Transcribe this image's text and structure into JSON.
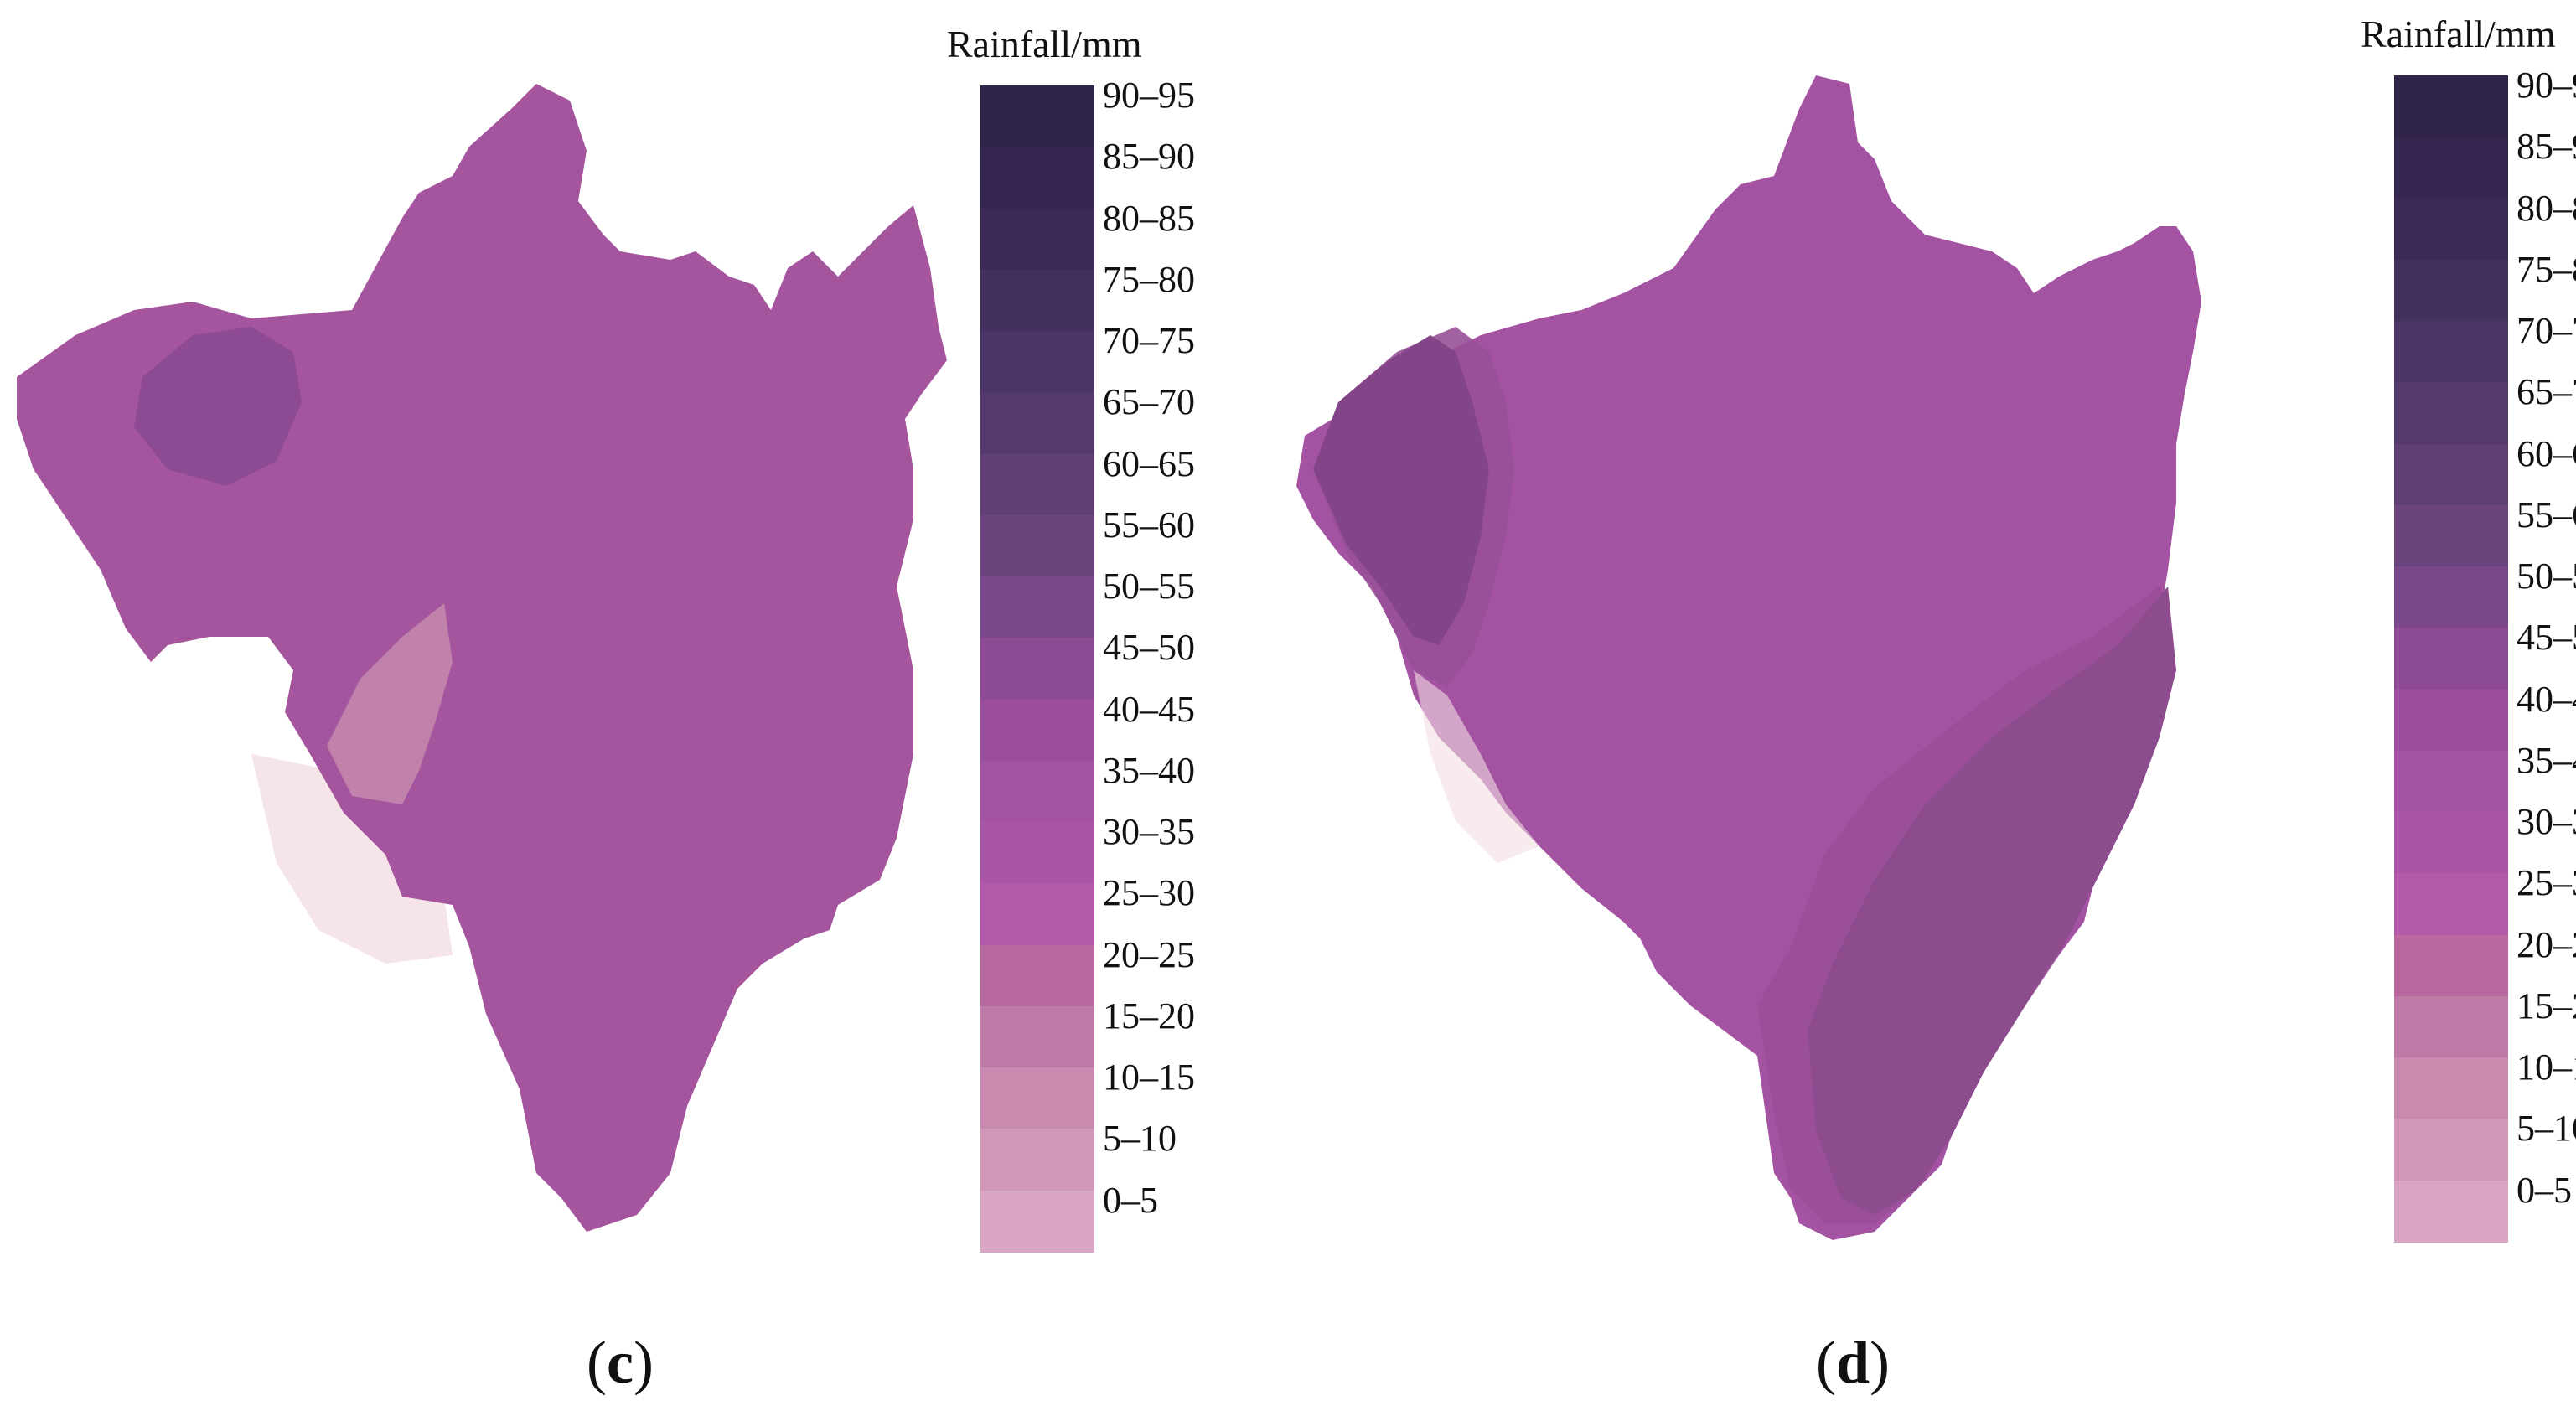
{
  "legend_title": "Rainfall/mm",
  "legend_classes": [
    "90–95",
    "85–90",
    "80–85",
    "75–80",
    "70–75",
    "65–70",
    "60–65",
    "55–60",
    "50–55",
    "45–50",
    "40–45",
    "35–40",
    "30–35",
    "25–30",
    "20–25",
    "15–20",
    "10–15",
    "5–10",
    "0–5"
  ],
  "legend_colors": [
    "#2f2447",
    "#352650",
    "#3b2a58",
    "#42305f",
    "#4b3566",
    "#543a6c",
    "#5f3f74",
    "#6b437d",
    "#7a4788",
    "#8c4b93",
    "#9a4e9c",
    "#a452a2",
    "#aa55a6",
    "#b25aa8",
    "#b8679f",
    "#c07aa7",
    "#c98aaf",
    "#d197b8",
    "#d8a6c4"
  ],
  "panels": [
    {
      "label_open": "(",
      "label": "c",
      "label_close": ")"
    },
    {
      "label_open": "(",
      "label": "d",
      "label_close": ")"
    }
  ],
  "map_colors": {
    "base_c": "#a4559e",
    "nw_patch_c": "#8a4a92",
    "light_patch_c": "#c58aad",
    "faded_c": "#f3dde2",
    "base_d": "#a452a2",
    "west_zone_d": "#844488",
    "west_mid_d": "#985097",
    "east_zone_d": "#8d4c8d",
    "east_mid_d": "#9a4f98"
  }
}
